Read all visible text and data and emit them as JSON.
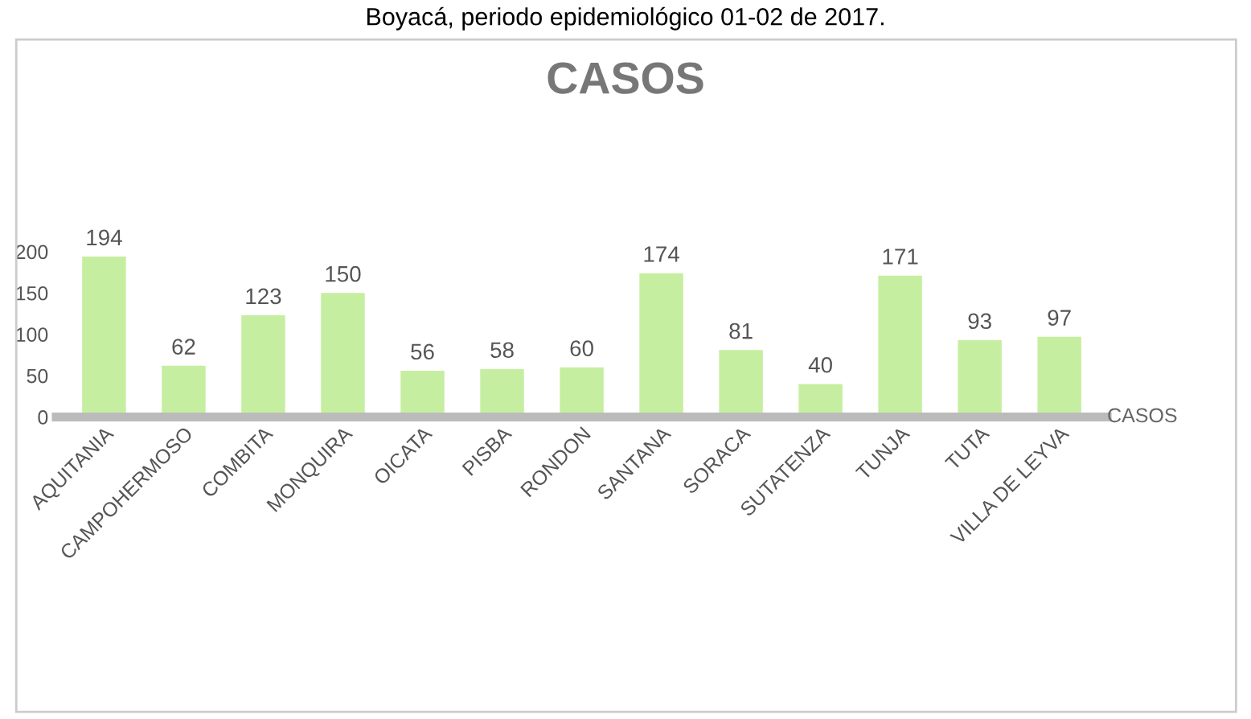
{
  "chart_data": {
    "type": "bar",
    "title": "CASOS",
    "annotations": [
      "Boyacá, periodo epidemiológico 01-02 de 2017."
    ],
    "categories": [
      "AQUITANIA",
      "CAMPOHERMOSO",
      "COMBITA",
      "MONQUIRA",
      "OICATA",
      "PISBA",
      "RONDON",
      "SANTANA",
      "SORACA",
      "SUTATENZA",
      "TUNJA",
      "TUTA",
      "VILLA DE LEYVA"
    ],
    "series": [
      {
        "name": "CASOS",
        "color": "#c6eea0",
        "values": [
          194,
          62,
          123,
          150,
          56,
          58,
          60,
          174,
          81,
          40,
          171,
          93,
          97
        ]
      }
    ],
    "ylim": [
      0,
      200
    ],
    "yticks": [
      0,
      50,
      100,
      150,
      200
    ],
    "data_labels": true,
    "grid": false,
    "legend": false
  }
}
